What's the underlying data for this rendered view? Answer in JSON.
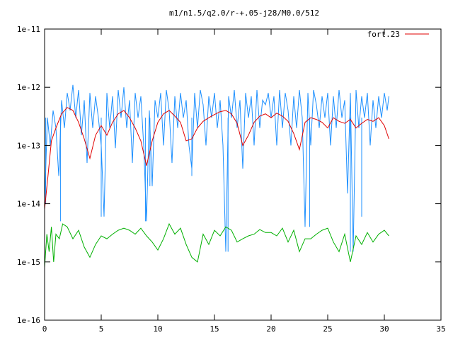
{
  "chart_data": {
    "type": "line",
    "title": "m1/n1.5/q2.0/r-+.05-j28/M0.0/512",
    "xlabel": "",
    "ylabel": "",
    "xlim": [
      0,
      35
    ],
    "ylim": [
      1e-16,
      1e-11
    ],
    "y_scale": "log",
    "grid": false,
    "legend_position": "top-right",
    "x_ticks": [
      "0",
      "5",
      "10",
      "15",
      "20",
      "25",
      "30",
      "35"
    ],
    "y_ticks": [
      "1e-16",
      "1e-15",
      "1e-14",
      "1e-13",
      "1e-12",
      "1e-11"
    ],
    "colors": {
      "red": "#e00000",
      "blue": "#1e90ff",
      "green": "#00b000"
    },
    "series": [
      {
        "name": "fort.23",
        "color": "#e00000",
        "x": [
          0.0,
          0.3,
          0.6,
          1.0,
          1.5,
          2.0,
          2.5,
          3.0,
          3.5,
          4.0,
          4.5,
          5.0,
          5.5,
          6.0,
          6.5,
          7.0,
          7.5,
          8.0,
          8.5,
          9.0,
          9.5,
          10.0,
          10.5,
          11.0,
          11.5,
          12.0,
          12.5,
          13.0,
          13.5,
          14.0,
          14.5,
          15.0,
          15.5,
          16.0,
          16.5,
          17.0,
          17.5,
          18.0,
          18.5,
          19.0,
          19.5,
          20.0,
          20.5,
          21.0,
          21.5,
          22.0,
          22.5,
          23.0,
          23.5,
          24.0,
          24.5,
          25.0,
          25.5,
          26.0,
          26.5,
          27.0,
          27.5,
          28.0,
          28.5,
          29.0,
          29.5,
          30.0,
          30.4
        ],
        "y": [
          8e-15,
          3e-14,
          1.2e-13,
          2e-13,
          3.5e-13,
          4.5e-13,
          4e-13,
          2.5e-13,
          1.3e-13,
          6e-14,
          1.5e-13,
          2.2e-13,
          1.5e-13,
          2.5e-13,
          3.5e-13,
          4e-13,
          3e-13,
          2e-13,
          1.2e-13,
          4.5e-14,
          1.2e-13,
          2.5e-13,
          3.5e-13,
          4e-13,
          3.2e-13,
          2.5e-13,
          1.2e-13,
          1.3e-13,
          2e-13,
          2.6e-13,
          3e-13,
          3.4e-13,
          3.8e-13,
          4e-13,
          3.5e-13,
          2.4e-13,
          1e-13,
          1.5e-13,
          2.5e-13,
          3.2e-13,
          3.5e-13,
          3e-13,
          3.6e-13,
          3.2e-13,
          2.6e-13,
          1.6e-13,
          8.5e-14,
          2.5e-13,
          3e-13,
          2.8e-13,
          2.5e-13,
          2e-13,
          3e-13,
          2.6e-13,
          2.4e-13,
          2.8e-13,
          2e-13,
          2.4e-13,
          2.8e-13,
          2.6e-13,
          3e-13,
          2.2e-13,
          1.3e-13
        ]
      },
      {
        "name": "",
        "color": "#1e90ff",
        "x": [
          0.0,
          0.25,
          0.5,
          0.75,
          1.0,
          1.25,
          1.5,
          1.75,
          2.0,
          2.25,
          2.5,
          2.75,
          3.0,
          3.25,
          3.5,
          3.75,
          4.0,
          4.25,
          4.5,
          4.75,
          5.0,
          5.25,
          5.5,
          5.75,
          6.0,
          6.25,
          6.5,
          6.75,
          7.0,
          7.25,
          7.5,
          7.75,
          8.0,
          8.25,
          8.5,
          8.75,
          9.0,
          9.25,
          9.5,
          9.75,
          10.0,
          10.25,
          10.5,
          10.75,
          11.0,
          11.25,
          11.5,
          11.75,
          12.0,
          12.25,
          12.5,
          12.75,
          13.0,
          13.25,
          13.5,
          13.75,
          14.0,
          14.25,
          14.5,
          14.75,
          15.0,
          15.25,
          15.5,
          15.75,
          16.0,
          16.25,
          16.5,
          16.75,
          17.0,
          17.25,
          17.5,
          17.75,
          18.0,
          18.25,
          18.5,
          18.75,
          19.0,
          19.25,
          19.5,
          19.75,
          20.0,
          20.25,
          20.5,
          20.75,
          21.0,
          21.25,
          21.5,
          21.75,
          22.0,
          22.25,
          22.5,
          22.75,
          23.0,
          23.25,
          23.5,
          23.75,
          24.0,
          24.25,
          24.5,
          24.75,
          25.0,
          25.25,
          25.5,
          25.75,
          26.0,
          26.25,
          26.5,
          26.75,
          27.0,
          27.25,
          27.5,
          27.75,
          28.0,
          28.25,
          28.5,
          28.75,
          29.0,
          29.25,
          29.5,
          29.75,
          30.0,
          30.25,
          30.4
        ],
        "y": [
          1e-14,
          3e-13,
          1e-13,
          4e-13,
          2e-13,
          3e-14,
          6e-13,
          2e-13,
          8e-13,
          4e-13,
          1.1e-12,
          3e-13,
          9e-13,
          1.5e-13,
          6e-13,
          5e-14,
          8e-13,
          2e-13,
          7e-13,
          3e-13,
          1e-13,
          6e-15,
          8e-13,
          2e-13,
          7e-13,
          9e-14,
          9e-13,
          3e-13,
          1e-12,
          2e-13,
          6e-13,
          5e-14,
          8e-13,
          3e-13,
          7e-13,
          1e-13,
          5e-15,
          4e-13,
          2e-14,
          6e-13,
          3e-13,
          8e-13,
          1e-13,
          9e-13,
          4e-13,
          5e-14,
          7e-13,
          2e-13,
          8e-13,
          3e-13,
          6e-13,
          1e-13,
          4e-14,
          8e-13,
          2e-13,
          9e-13,
          5e-13,
          1e-13,
          7e-13,
          3e-13,
          8e-13,
          2e-13,
          6e-13,
          1e-13,
          1.5e-15,
          7e-13,
          3e-13,
          9e-13,
          2e-13,
          6e-13,
          4e-14,
          8e-13,
          3e-13,
          7e-13,
          1e-13,
          9e-13,
          2e-13,
          6e-13,
          5e-13,
          8e-13,
          3e-13,
          7e-13,
          1e-13,
          9e-13,
          2e-13,
          8e-13,
          4e-13,
          1e-13,
          7e-13,
          2e-13,
          9e-13,
          3e-13,
          4e-15,
          8e-13,
          1e-13,
          9e-13,
          5e-13,
          2e-13,
          7e-13,
          3e-13,
          8e-13,
          1e-13,
          7e-13,
          2e-13,
          9e-13,
          3e-13,
          6e-13,
          1.5e-14,
          8e-13,
          1.5e-15,
          9e-13,
          2e-13,
          7e-13,
          3e-13,
          8e-13,
          1e-13,
          6e-13,
          2e-13,
          7e-13,
          3e-13,
          8e-13,
          4e-13,
          7e-13
        ],
        "spikes": [
          {
            "x": 0.1,
            "y": 1e-14
          },
          {
            "x": 1.4,
            "y": 5e-15
          },
          {
            "x": 5.0,
            "y": 6e-15
          },
          {
            "x": 8.9,
            "y": 5e-15
          },
          {
            "x": 9.3,
            "y": 2e-14
          },
          {
            "x": 13.0,
            "y": 3e-14
          },
          {
            "x": 16.2,
            "y": 1.5e-15
          },
          {
            "x": 23.4,
            "y": 4e-15
          },
          {
            "x": 27.0,
            "y": 1.5e-15
          },
          {
            "x": 28.0,
            "y": 6e-15
          }
        ]
      },
      {
        "name": "",
        "color": "#00b000",
        "x": [
          0.0,
          0.2,
          0.4,
          0.6,
          0.8,
          1.0,
          1.3,
          1.6,
          2.0,
          2.5,
          3.0,
          3.5,
          4.0,
          4.5,
          5.0,
          5.5,
          6.0,
          6.5,
          7.0,
          7.5,
          8.0,
          8.5,
          9.0,
          9.5,
          10.0,
          10.5,
          11.0,
          11.5,
          12.0,
          12.5,
          13.0,
          13.5,
          14.0,
          14.5,
          15.0,
          15.5,
          16.0,
          16.5,
          17.0,
          17.5,
          18.0,
          18.5,
          19.0,
          19.5,
          20.0,
          20.5,
          21.0,
          21.5,
          22.0,
          22.5,
          23.0,
          23.5,
          24.0,
          24.5,
          25.0,
          25.5,
          26.0,
          26.5,
          27.0,
          27.5,
          28.0,
          28.5,
          29.0,
          29.5,
          30.0,
          30.4
        ],
        "y": [
          8e-16,
          3e-15,
          1.5e-15,
          4e-15,
          1e-15,
          3e-15,
          2.5e-15,
          4.5e-15,
          4e-15,
          2.5e-15,
          3.5e-15,
          1.8e-15,
          1.2e-15,
          2e-15,
          2.8e-15,
          2.5e-15,
          3e-15,
          3.5e-15,
          3.8e-15,
          3.5e-15,
          3e-15,
          3.8e-15,
          2.8e-15,
          2.2e-15,
          1.6e-15,
          2.5e-15,
          4.5e-15,
          3e-15,
          3.8e-15,
          2e-15,
          1.2e-15,
          1e-15,
          3e-15,
          2e-15,
          3.5e-15,
          2.8e-15,
          4e-15,
          3.5e-15,
          2.2e-15,
          2.5e-15,
          2.8e-15,
          3e-15,
          3.6e-15,
          3.2e-15,
          3.2e-15,
          2.8e-15,
          3.8e-15,
          2.2e-15,
          3.5e-15,
          1.5e-15,
          2.5e-15,
          2.5e-15,
          3e-15,
          3.5e-15,
          3.8e-15,
          2.2e-15,
          1.5e-15,
          3e-15,
          1e-15,
          2.8e-15,
          2e-15,
          3.2e-15,
          2.2e-15,
          3e-15,
          3.5e-15,
          2.8e-15
        ]
      }
    ]
  }
}
